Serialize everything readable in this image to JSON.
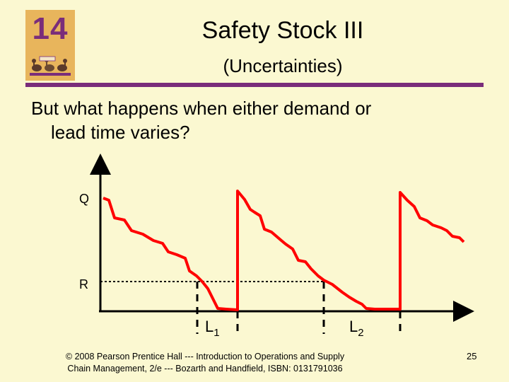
{
  "logo": {
    "number": "14"
  },
  "header": {
    "title": "Safety Stock III",
    "subtitle": "(Uncertainties)"
  },
  "body": {
    "line1": "But what happens when either demand or",
    "line2": "lead time varies?"
  },
  "diagram": {
    "q_label": "Q",
    "r_label": "R",
    "l1_label": "L",
    "l1_sub": "1",
    "l2_label": "L",
    "l2_sub": "2",
    "line_color": "#ff0000",
    "axis_color": "#000000"
  },
  "footer": {
    "line1": "© 2008 Pearson Prentice Hall --- Introduction to Operations and Supply",
    "line2": "Chain Management, 2/e --- Bozarth and Handfield, ISBN: 0131791036"
  },
  "page_number": "25"
}
